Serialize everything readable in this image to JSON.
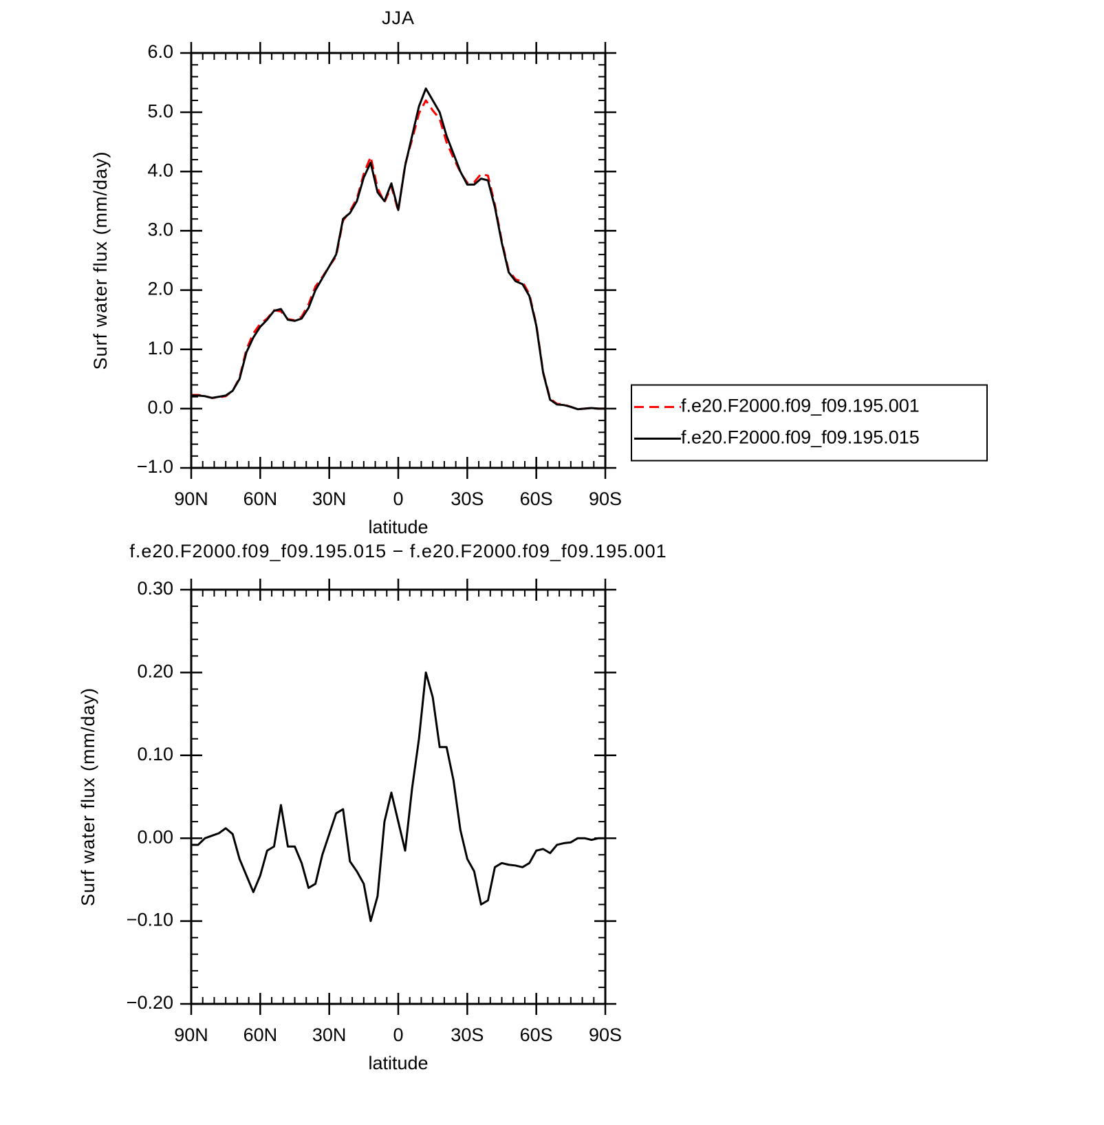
{
  "chart_data": [
    {
      "type": "line",
      "title": "JJA",
      "xlabel": "latitude",
      "ylabel": "Surf water flux (mm/day)",
      "x": [
        90,
        87,
        84,
        81,
        78,
        75,
        72,
        69,
        66,
        63,
        60,
        57,
        54,
        51,
        48,
        45,
        42,
        39,
        36,
        33,
        30,
        27,
        24,
        21,
        18,
        15,
        12,
        9,
        6,
        3,
        0,
        -3,
        -6,
        -9,
        -12,
        -15,
        -18,
        -21,
        -24,
        -27,
        -30,
        -33,
        -36,
        -39,
        -42,
        -45,
        -48,
        -51,
        -54,
        -57,
        -60,
        -63,
        -66,
        -69,
        -72,
        -75,
        -78,
        -81,
        -84,
        -87,
        -90
      ],
      "xlim": [
        90,
        -90
      ],
      "xticks": [
        {
          "value": 90,
          "label": "90N"
        },
        {
          "value": 60,
          "label": "60N"
        },
        {
          "value": 30,
          "label": "30N"
        },
        0,
        {
          "value": -30,
          "label": "30S"
        },
        {
          "value": -60,
          "label": "60S"
        },
        {
          "value": -90,
          "label": "90S"
        }
      ],
      "ylim": [
        -1,
        6
      ],
      "yticks": [
        {
          "value": -1,
          "label": "−1.0"
        },
        {
          "value": 0,
          "label": "0.0"
        },
        {
          "value": 1,
          "label": "1.0"
        },
        {
          "value": 2,
          "label": "2.0"
        },
        {
          "value": 3,
          "label": "3.0"
        },
        {
          "value": 4,
          "label": "4.0"
        },
        {
          "value": 5,
          "label": "5.0"
        },
        {
          "value": 6,
          "label": "6.0"
        }
      ],
      "legend": "right",
      "series": [
        {
          "name": "f.e20.F2000.f09_f09.195.001",
          "color": "#ff0000",
          "line_style": "dashed",
          "values": [
            0.23,
            0.23,
            0.21,
            0.18,
            0.19,
            0.21,
            0.3,
            0.52,
            1.0,
            1.27,
            1.43,
            1.52,
            1.66,
            1.64,
            1.51,
            1.49,
            1.55,
            1.76,
            2.06,
            2.22,
            2.4,
            2.57,
            3.17,
            3.33,
            3.54,
            3.96,
            4.25,
            3.72,
            3.48,
            3.75,
            3.33,
            4.12,
            4.54,
            4.98,
            5.2,
            5.03,
            4.89,
            4.49,
            4.23,
            3.99,
            3.81,
            3.82,
            3.96,
            3.93,
            3.44,
            2.83,
            2.33,
            2.18,
            2.14,
            1.93,
            1.42,
            0.61,
            0.17,
            0.08,
            0.07,
            0.03,
            -0.01,
            0.0,
            0.01,
            0.0,
            0.0
          ]
        },
        {
          "name": "f.e20.F2000.f09_f09.195.015",
          "color": "#000000",
          "line_style": "solid",
          "values": [
            0.22,
            0.22,
            0.21,
            0.18,
            0.2,
            0.22,
            0.3,
            0.5,
            0.95,
            1.2,
            1.38,
            1.5,
            1.65,
            1.68,
            1.5,
            1.48,
            1.52,
            1.7,
            2.0,
            2.2,
            2.4,
            2.6,
            3.2,
            3.3,
            3.5,
            3.9,
            4.15,
            3.65,
            3.5,
            3.8,
            3.35,
            4.1,
            4.6,
            5.1,
            5.4,
            5.2,
            5.0,
            4.6,
            4.3,
            4.0,
            3.78,
            3.78,
            3.88,
            3.85,
            3.4,
            2.8,
            2.3,
            2.15,
            2.1,
            1.9,
            1.4,
            0.6,
            0.15,
            0.07,
            0.06,
            0.03,
            -0.01,
            0.0,
            0.01,
            0.0,
            0.0
          ]
        }
      ]
    },
    {
      "type": "line",
      "title": "f.e20.F2000.f09_f09.195.015 − f.e20.F2000.f09_f09.195.001",
      "xlabel": "latitude",
      "ylabel": "Surf water flux (mm/day)",
      "x": [
        90,
        87,
        84,
        81,
        78,
        75,
        72,
        69,
        66,
        63,
        60,
        57,
        54,
        51,
        48,
        45,
        42,
        39,
        36,
        33,
        30,
        27,
        24,
        21,
        18,
        15,
        12,
        9,
        6,
        3,
        0,
        -3,
        -6,
        -9,
        -12,
        -15,
        -18,
        -21,
        -24,
        -27,
        -30,
        -33,
        -36,
        -39,
        -42,
        -45,
        -48,
        -51,
        -54,
        -57,
        -60,
        -63,
        -66,
        -69,
        -72,
        -75,
        -78,
        -81,
        -84,
        -87,
        -90
      ],
      "xlim": [
        90,
        -90
      ],
      "xticks": [
        {
          "value": 90,
          "label": "90N"
        },
        {
          "value": 60,
          "label": "60N"
        },
        {
          "value": 30,
          "label": "30N"
        },
        0,
        {
          "value": -30,
          "label": "30S"
        },
        {
          "value": -60,
          "label": "60S"
        },
        {
          "value": -90,
          "label": "90S"
        }
      ],
      "ylim": [
        -0.2,
        0.3
      ],
      "yticks": [
        {
          "value": -0.2,
          "label": "−0.20"
        },
        {
          "value": -0.1,
          "label": "−0.10"
        },
        {
          "value": 0,
          "label": "0.00"
        },
        {
          "value": 0.1,
          "label": "0.10"
        },
        {
          "value": 0.2,
          "label": "0.20"
        },
        {
          "value": 0.3,
          "label": "0.30"
        }
      ],
      "color": "#000000",
      "line_style": "solid",
      "values": [
        -0.008,
        -0.008,
        0.0,
        0.003,
        0.006,
        0.012,
        0.005,
        -0.025,
        -0.045,
        -0.065,
        -0.045,
        -0.015,
        -0.01,
        0.04,
        -0.01,
        -0.01,
        -0.03,
        -0.06,
        -0.055,
        -0.02,
        0.005,
        0.03,
        0.035,
        -0.028,
        -0.04,
        -0.055,
        -0.1,
        -0.07,
        0.02,
        0.055,
        0.02,
        -0.015,
        0.06,
        0.12,
        0.2,
        0.17,
        0.11,
        0.11,
        0.07,
        0.01,
        -0.025,
        -0.04,
        -0.08,
        -0.075,
        -0.035,
        -0.03,
        -0.032,
        -0.033,
        -0.035,
        -0.03,
        -0.015,
        -0.013,
        -0.018,
        -0.008,
        -0.006,
        -0.005,
        0.0,
        0.0,
        -0.002,
        0.0,
        0.0
      ]
    }
  ]
}
